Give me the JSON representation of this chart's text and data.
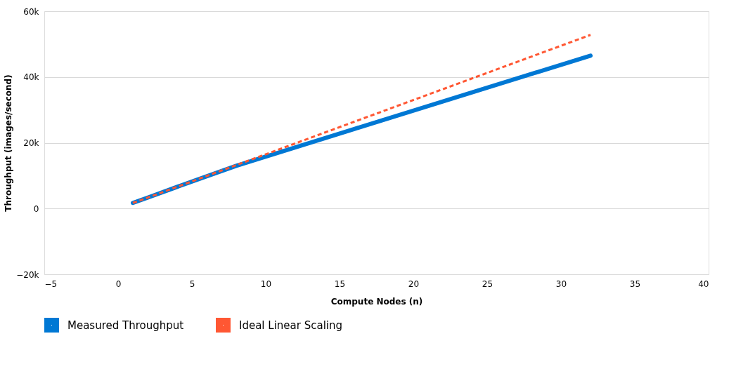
{
  "chart_data": {
    "type": "line",
    "xlabel": "Compute Nodes (n)",
    "ylabel": "Throughput (images/second)",
    "x": [
      1,
      2,
      4,
      8,
      16,
      32
    ],
    "series": [
      {
        "name": "Measured Throughput",
        "color": "#0078d4",
        "values": [
          1700,
          3300,
          6600,
          13000,
          24200,
          46500
        ],
        "line_style": "solid"
      },
      {
        "name": "Ideal Linear Scaling",
        "color": "#ff5733",
        "values": [
          1700,
          3300,
          6600,
          13200,
          26400,
          52800
        ],
        "line_style": "dashed"
      }
    ],
    "xlim": [
      -5,
      40
    ],
    "xticks": [
      -5,
      0,
      5,
      10,
      15,
      20,
      25,
      30,
      35,
      40
    ],
    "ylim": [
      -20000,
      60000
    ],
    "yticks": [
      {
        "value": -20000,
        "label": "−20k"
      },
      {
        "value": 0,
        "label": "0"
      },
      {
        "value": 20000,
        "label": "20k"
      },
      {
        "value": 40000,
        "label": "40k"
      },
      {
        "value": 60000,
        "label": "60k"
      }
    ],
    "grid": "y",
    "legend": "bottom left",
    "marker": "none"
  }
}
